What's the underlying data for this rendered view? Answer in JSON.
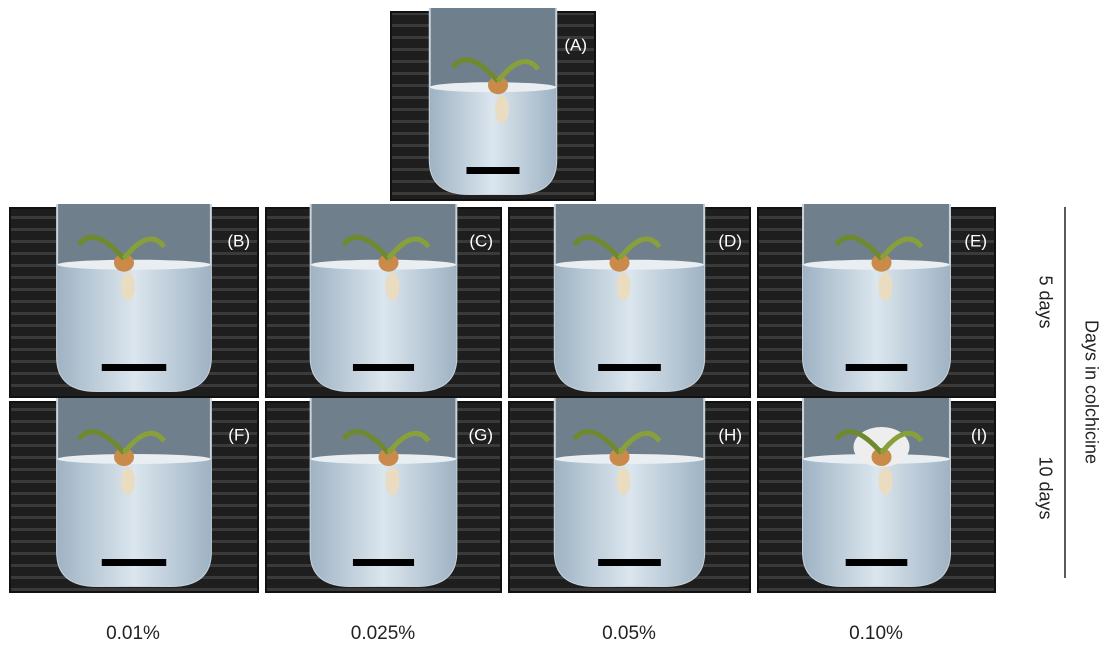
{
  "panels": [
    "(A)",
    "(B)",
    "(C)",
    "(D)",
    "(E)",
    "(F)",
    "(G)",
    "(H)",
    "(I)"
  ],
  "columns": [
    "0.01%",
    "0.025%",
    "0.05%",
    "0.10%"
  ],
  "rows": [
    "5 days",
    "10 days"
  ],
  "axis_title": "Days in colchicine"
}
